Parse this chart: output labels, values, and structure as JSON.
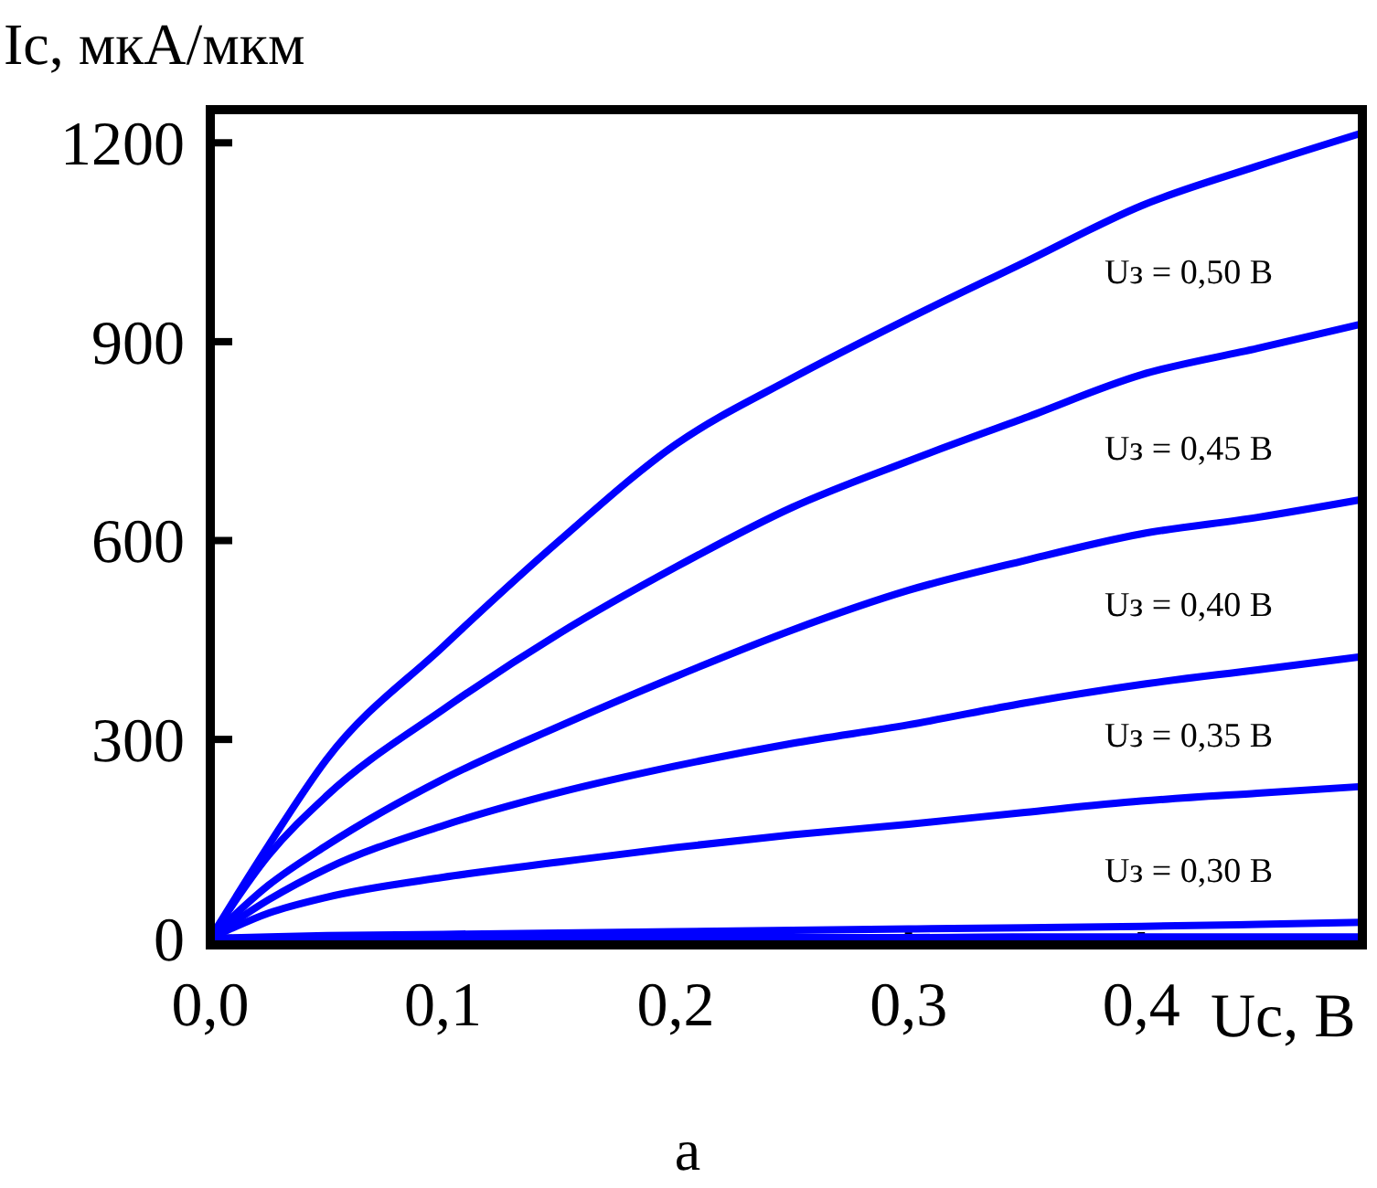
{
  "chart_data": {
    "type": "line",
    "ylabel": "Ic, мкА/мкм",
    "xlabel": "Uc, В",
    "annotations": [
      "а"
    ],
    "x": [
      0,
      0.025,
      0.05,
      0.1,
      0.15,
      0.2,
      0.25,
      0.3,
      0.35,
      0.4,
      0.45,
      0.495
    ],
    "xlim": [
      0,
      0.495
    ],
    "xticks": [
      {
        "value": 0,
        "label": "0,0"
      },
      {
        "value": 0.1,
        "label": "0,1"
      },
      {
        "value": 0.2,
        "label": "0,2"
      },
      {
        "value": 0.3,
        "label": "0,3"
      },
      {
        "value": 0.4,
        "label": "0,4"
      }
    ],
    "ylim": [
      -10,
      1250
    ],
    "yticks": [
      0,
      300,
      600,
      900,
      1200
    ],
    "grid": false,
    "legend": false,
    "marker": "none",
    "line_style": "solid",
    "series": [
      {
        "name": "Uз = 0,50 В",
        "color": "#0000ff",
        "values": [
          0,
          140,
          270,
          440,
          600,
          745,
          845,
          935,
          1020,
          1105,
          1165,
          1215
        ]
      },
      {
        "name": "Uз = 0,45 В",
        "color": "#0000ff",
        "values": [
          0,
          125,
          215,
          345,
          460,
          560,
          650,
          720,
          785,
          850,
          890,
          927
        ]
      },
      {
        "name": "Uз = 0,40 В",
        "color": "#0000ff",
        "values": [
          0,
          80,
          140,
          240,
          320,
          395,
          465,
          525,
          570,
          610,
          635,
          662
        ]
      },
      {
        "name": "Uз = 0,35 В",
        "color": "#0000ff",
        "values": [
          0,
          58,
          105,
          170,
          220,
          260,
          294,
          322,
          355,
          383,
          405,
          425
        ]
      },
      {
        "name": "Uз = 0,30 В",
        "color": "#0000ff",
        "values": [
          0,
          38,
          62,
          92,
          115,
          137,
          156,
          172,
          190,
          207,
          219,
          229
        ]
      },
      {
        "color": "#0000ff",
        "values": [
          0,
          2,
          4,
          6,
          8,
          10,
          12,
          14,
          16,
          18,
          21,
          24
        ]
      },
      {
        "color": "#0000ff",
        "values": [
          0,
          0,
          0,
          1,
          1,
          1,
          1,
          1,
          2,
          2,
          2,
          2
        ]
      }
    ]
  }
}
